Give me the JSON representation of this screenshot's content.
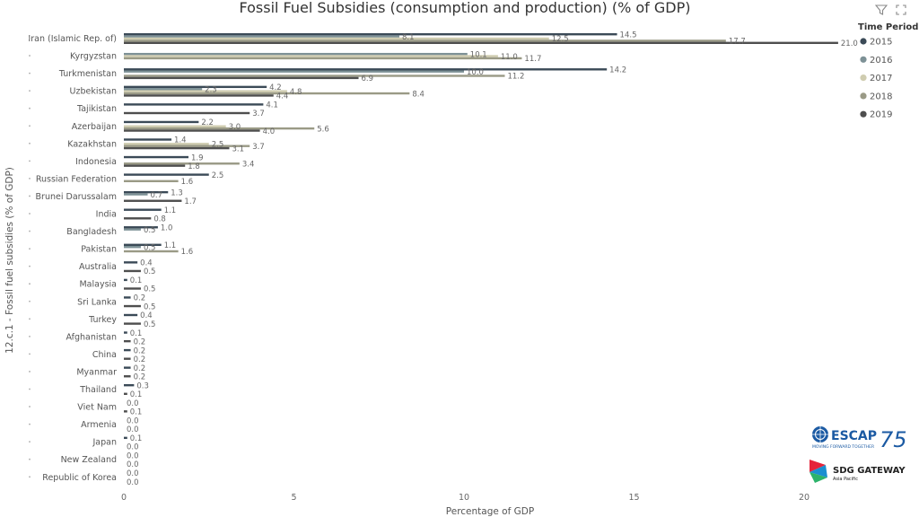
{
  "chart_data": {
    "type": "bar",
    "orientation": "horizontal",
    "title": "Fossil Fuel Subsidies (consumption and production) (% of GDP)",
    "xlabel": "Percentage of GDP",
    "ylabel": "12.c.1 - Fossil fuel subsidies (% of GDP)",
    "xlim": [
      0,
      22
    ],
    "xticks": [
      0,
      5,
      10,
      15,
      20
    ],
    "legend_title": "Time Period",
    "legend_position": "top-right",
    "grid": false,
    "categories": [
      "Iran (Islamic Rep. of)",
      "Kyrgyzstan",
      "Turkmenistan",
      "Uzbekistan",
      "Tajikistan",
      "Azerbaijan",
      "Kazakhstan",
      "Indonesia",
      "Russian Federation",
      "Brunei Darussalam",
      "India",
      "Bangladesh",
      "Pakistan",
      "Australia",
      "Malaysia",
      "Sri Lanka",
      "Turkey",
      "Afghanistan",
      "China",
      "Myanmar",
      "Thailand",
      "Viet Nam",
      "Armenia",
      "Japan",
      "New Zealand",
      "Republic of Korea"
    ],
    "series": [
      {
        "name": "2015",
        "color": "#3b4a57",
        "values": [
          14.5,
          null,
          14.2,
          4.2,
          4.1,
          2.2,
          1.4,
          1.9,
          2.5,
          1.3,
          1.1,
          1.0,
          1.1,
          0.4,
          0.1,
          0.2,
          0.4,
          0.1,
          0.2,
          0.2,
          0.3,
          0.0,
          0.0,
          0.1,
          0.0,
          0.0
        ]
      },
      {
        "name": "2016",
        "color": "#7d9196",
        "values": [
          8.1,
          10.1,
          10.0,
          2.3,
          null,
          null,
          null,
          null,
          null,
          0.7,
          null,
          0.5,
          0.5,
          null,
          null,
          null,
          null,
          null,
          null,
          null,
          null,
          null,
          null,
          null,
          null,
          null
        ]
      },
      {
        "name": "2017",
        "color": "#cfccb0",
        "values": [
          12.5,
          11.0,
          null,
          4.8,
          null,
          3.0,
          2.5,
          null,
          null,
          null,
          null,
          null,
          null,
          null,
          null,
          null,
          null,
          null,
          null,
          null,
          null,
          null,
          null,
          null,
          null,
          null
        ]
      },
      {
        "name": "2018",
        "color": "#9a9a86",
        "values": [
          17.7,
          11.7,
          11.2,
          8.4,
          null,
          5.6,
          3.7,
          3.4,
          1.6,
          null,
          null,
          null,
          1.6,
          null,
          null,
          null,
          null,
          null,
          null,
          null,
          null,
          null,
          null,
          null,
          null,
          null
        ]
      },
      {
        "name": "2019",
        "color": "#4e4e4e",
        "values": [
          21.0,
          null,
          6.9,
          4.4,
          3.7,
          4.0,
          3.1,
          1.8,
          null,
          1.7,
          0.8,
          null,
          null,
          0.5,
          0.5,
          0.5,
          0.5,
          0.2,
          0.2,
          0.2,
          0.1,
          0.1,
          0.0,
          0.0,
          0.0,
          0.0
        ]
      }
    ]
  },
  "toolbar": {
    "filter_icon": "filter-icon",
    "focus_icon": "focus-mode-icon"
  },
  "logos": {
    "escap_name": "ESCAP",
    "escap_number": "75",
    "escap_tagline": "MOVING FORWARD TOGETHER",
    "sdg_name": "SDG GATEWAY",
    "sdg_sub": "Asia Pacific"
  }
}
